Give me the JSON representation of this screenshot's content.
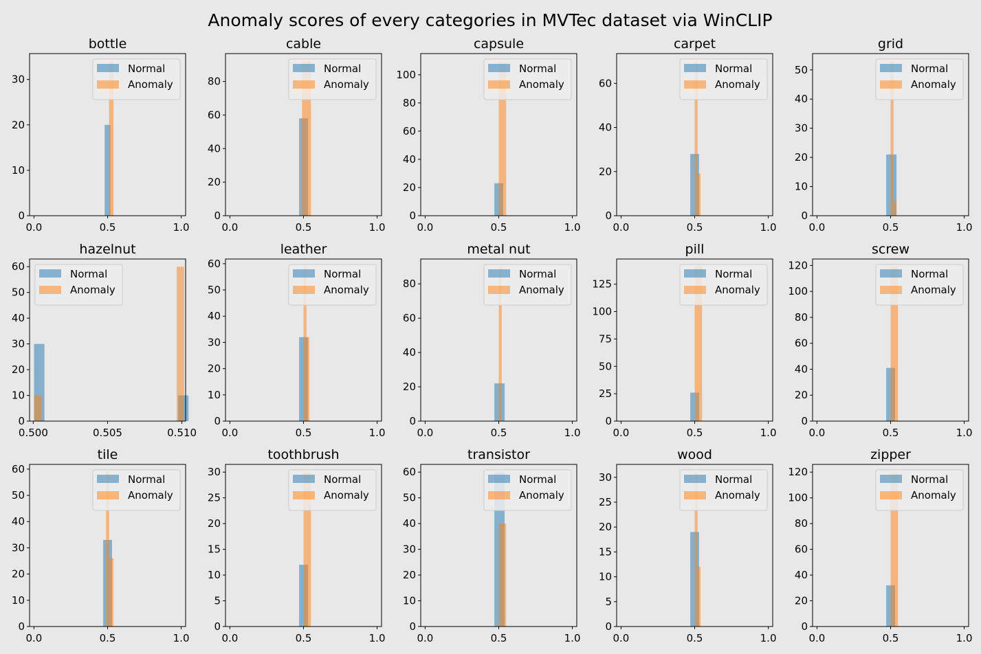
{
  "figure": {
    "suptitle": "Anomaly scores of every categories in MVTec dataset via WinCLIP",
    "background": "#e8e8e8"
  },
  "colors": {
    "normal": "#1f77b4",
    "anomaly": "#ff7f0e"
  },
  "legend": {
    "normal": "Normal",
    "anomaly": "Anomaly"
  },
  "chart_data": [
    {
      "type": "bar",
      "title": "bottle",
      "xlim": [
        -0.03,
        1.03
      ],
      "ylim": [
        0,
        35.7
      ],
      "xticks": [
        "0.0",
        "0.5",
        "1.0"
      ],
      "xtick_values": [
        0,
        0.5,
        1
      ],
      "yticks": [
        0,
        10,
        20,
        30
      ],
      "legend_loc": "upper right",
      "series": [
        {
          "name": "Normal",
          "bars": [
            {
              "x0": 0.48,
              "x1": 0.52,
              "value": 20
            }
          ]
        },
        {
          "name": "Anomaly",
          "bars": [
            {
              "x0": 0.51,
              "x1": 0.54,
              "value": 34
            }
          ]
        }
      ]
    },
    {
      "type": "bar",
      "title": "cable",
      "xlim": [
        -0.03,
        1.03
      ],
      "ylim": [
        0,
        96.6
      ],
      "xticks": [
        "0.0",
        "0.5",
        "1.0"
      ],
      "xtick_values": [
        0,
        0.5,
        1
      ],
      "yticks": [
        0,
        20,
        40,
        60,
        80
      ],
      "legend_loc": "upper right",
      "series": [
        {
          "name": "Normal",
          "bars": [
            {
              "x0": 0.47,
              "x1": 0.53,
              "value": 58
            }
          ]
        },
        {
          "name": "Anomaly",
          "bars": [
            {
              "x0": 0.49,
              "x1": 0.55,
              "value": 92
            }
          ]
        }
      ]
    },
    {
      "type": "bar",
      "title": "capsule",
      "xlim": [
        -0.03,
        1.03
      ],
      "ylim": [
        0,
        115
      ],
      "xticks": [
        "0.0",
        "0.5",
        "1.0"
      ],
      "xtick_values": [
        0,
        0.5,
        1
      ],
      "yticks": [
        0,
        20,
        40,
        60,
        80,
        100
      ],
      "legend_loc": "upper right",
      "series": [
        {
          "name": "Normal",
          "bars": [
            {
              "x0": 0.47,
              "x1": 0.53,
              "value": 23
            }
          ]
        },
        {
          "name": "Anomaly",
          "bars": [
            {
              "x0": 0.5,
              "x1": 0.55,
              "value": 109
            }
          ]
        }
      ]
    },
    {
      "type": "bar",
      "title": "carpet",
      "xlim": [
        -0.03,
        1.03
      ],
      "ylim": [
        0,
        73.5
      ],
      "xticks": [
        "0.0",
        "0.5",
        "1.0"
      ],
      "xtick_values": [
        0,
        0.5,
        1
      ],
      "yticks": [
        0,
        20,
        40,
        60
      ],
      "legend_loc": "upper right",
      "series": [
        {
          "name": "Normal",
          "bars": [
            {
              "x0": 0.47,
              "x1": 0.53,
              "value": 28
            }
          ]
        },
        {
          "name": "Anomaly",
          "bars": [
            {
              "x0": 0.5,
              "x1": 0.52,
              "value": 70
            },
            {
              "x0": 0.52,
              "x1": 0.54,
              "value": 19
            }
          ]
        }
      ]
    },
    {
      "type": "bar",
      "title": "grid",
      "xlim": [
        -0.03,
        1.03
      ],
      "ylim": [
        0,
        55.6
      ],
      "xticks": [
        "0.0",
        "0.5",
        "1.0"
      ],
      "xtick_values": [
        0,
        0.5,
        1
      ],
      "yticks": [
        0,
        10,
        20,
        30,
        40,
        50
      ],
      "legend_loc": "upper right",
      "series": [
        {
          "name": "Normal",
          "bars": [
            {
              "x0": 0.47,
              "x1": 0.54,
              "value": 21
            }
          ]
        },
        {
          "name": "Anomaly",
          "bars": [
            {
              "x0": 0.5,
              "x1": 0.52,
              "value": 53
            },
            {
              "x0": 0.52,
              "x1": 0.54,
              "value": 5
            }
          ]
        }
      ]
    },
    {
      "type": "bar",
      "title": "hazelnut",
      "xlim": [
        0.49975,
        0.51025
      ],
      "ylim": [
        0,
        63
      ],
      "xticks": [
        "0.500",
        "0.505",
        "0.510"
      ],
      "xtick_values": [
        0.5,
        0.505,
        0.51
      ],
      "yticks": [
        0,
        10,
        20,
        30,
        40,
        50,
        60
      ],
      "legend_loc": "upper left",
      "series": [
        {
          "name": "Normal",
          "bars": [
            {
              "x0": 0.50005,
              "x1": 0.50075,
              "value": 30
            },
            {
              "x0": 0.50975,
              "x1": 0.51045,
              "value": 10
            }
          ]
        },
        {
          "name": "Anomaly",
          "bars": [
            {
              "x0": 0.50005,
              "x1": 0.50055,
              "value": 10
            },
            {
              "x0": 0.50965,
              "x1": 0.51015,
              "value": 60
            }
          ]
        }
      ]
    },
    {
      "type": "bar",
      "title": "leather",
      "xlim": [
        -0.03,
        1.03
      ],
      "ylim": [
        0,
        61.8
      ],
      "xticks": [
        "0.0",
        "0.5",
        "1.0"
      ],
      "xtick_values": [
        0,
        0.5,
        1
      ],
      "yticks": [
        0,
        10,
        20,
        30,
        40,
        50,
        60
      ],
      "legend_loc": "upper right",
      "series": [
        {
          "name": "Normal",
          "bars": [
            {
              "x0": 0.47,
              "x1": 0.53,
              "value": 32
            }
          ]
        },
        {
          "name": "Anomaly",
          "bars": [
            {
              "x0": 0.5,
              "x1": 0.52,
              "value": 59
            },
            {
              "x0": 0.52,
              "x1": 0.54,
              "value": 32
            }
          ]
        }
      ]
    },
    {
      "type": "bar",
      "title": "metal nut",
      "xlim": [
        -0.03,
        1.03
      ],
      "ylim": [
        0,
        94.5
      ],
      "xticks": [
        "0.0",
        "0.5",
        "1.0"
      ],
      "xtick_values": [
        0,
        0.5,
        1
      ],
      "yticks": [
        0,
        20,
        40,
        60,
        80
      ],
      "legend_loc": "upper right",
      "series": [
        {
          "name": "Normal",
          "bars": [
            {
              "x0": 0.47,
              "x1": 0.54,
              "value": 22
            }
          ]
        },
        {
          "name": "Anomaly",
          "bars": [
            {
              "x0": 0.5,
              "x1": 0.52,
              "value": 90
            }
          ]
        }
      ]
    },
    {
      "type": "bar",
      "title": "pill",
      "xlim": [
        -0.03,
        1.03
      ],
      "ylim": [
        0,
        148
      ],
      "xticks": [
        "0.0",
        "0.5",
        "1.0"
      ],
      "xtick_values": [
        0,
        0.5,
        1
      ],
      "yticks": [
        0,
        25,
        50,
        75,
        100,
        125
      ],
      "legend_loc": "upper right",
      "series": [
        {
          "name": "Normal",
          "bars": [
            {
              "x0": 0.47,
              "x1": 0.53,
              "value": 26
            }
          ]
        },
        {
          "name": "Anomaly",
          "bars": [
            {
              "x0": 0.5,
              "x1": 0.55,
              "value": 141
            }
          ]
        }
      ]
    },
    {
      "type": "bar",
      "title": "screw",
      "xlim": [
        -0.03,
        1.03
      ],
      "ylim": [
        0,
        125
      ],
      "xticks": [
        "0.0",
        "0.5",
        "1.0"
      ],
      "xtick_values": [
        0,
        0.5,
        1
      ],
      "yticks": [
        0,
        20,
        40,
        60,
        80,
        100,
        120
      ],
      "legend_loc": "upper right",
      "series": [
        {
          "name": "Normal",
          "bars": [
            {
              "x0": 0.47,
              "x1": 0.53,
              "value": 41
            }
          ]
        },
        {
          "name": "Anomaly",
          "bars": [
            {
              "x0": 0.5,
              "x1": 0.55,
              "value": 119
            }
          ]
        }
      ]
    },
    {
      "type": "bar",
      "title": "tile",
      "xlim": [
        -0.03,
        1.03
      ],
      "ylim": [
        0,
        61.8
      ],
      "xticks": [
        "0.0",
        "0.5",
        "1.0"
      ],
      "xtick_values": [
        0,
        0.5,
        1
      ],
      "yticks": [
        0,
        10,
        20,
        30,
        40,
        50,
        60
      ],
      "legend_loc": "upper right",
      "series": [
        {
          "name": "Normal",
          "bars": [
            {
              "x0": 0.47,
              "x1": 0.53,
              "value": 33
            }
          ]
        },
        {
          "name": "Anomaly",
          "bars": [
            {
              "x0": 0.49,
              "x1": 0.51,
              "value": 59
            },
            {
              "x0": 0.51,
              "x1": 0.54,
              "value": 26
            }
          ]
        }
      ]
    },
    {
      "type": "bar",
      "title": "toothbrush",
      "xlim": [
        -0.03,
        1.03
      ],
      "ylim": [
        0,
        31.5
      ],
      "xticks": [
        "0.0",
        "0.5",
        "1.0"
      ],
      "xtick_values": [
        0,
        0.5,
        1
      ],
      "yticks": [
        0,
        5,
        10,
        15,
        20,
        25,
        30
      ],
      "legend_loc": "upper right",
      "series": [
        {
          "name": "Normal",
          "bars": [
            {
              "x0": 0.47,
              "x1": 0.53,
              "value": 12
            }
          ]
        },
        {
          "name": "Anomaly",
          "bars": [
            {
              "x0": 0.5,
              "x1": 0.55,
              "value": 30
            }
          ]
        }
      ]
    },
    {
      "type": "bar",
      "title": "transistor",
      "xlim": [
        -0.03,
        1.03
      ],
      "ylim": [
        0,
        63
      ],
      "xticks": [
        "0.0",
        "0.5",
        "1.0"
      ],
      "xtick_values": [
        0,
        0.5,
        1
      ],
      "yticks": [
        0,
        10,
        20,
        30,
        40,
        50,
        60
      ],
      "legend_loc": "upper right",
      "series": [
        {
          "name": "Normal",
          "bars": [
            {
              "x0": 0.47,
              "x1": 0.54,
              "value": 60
            }
          ]
        },
        {
          "name": "Anomaly",
          "bars": [
            {
              "x0": 0.5,
              "x1": 0.55,
              "value": 40
            }
          ]
        }
      ]
    },
    {
      "type": "bar",
      "title": "wood",
      "xlim": [
        -0.03,
        1.03
      ],
      "ylim": [
        0,
        32.6
      ],
      "xticks": [
        "0.0",
        "0.5",
        "1.0"
      ],
      "xtick_values": [
        0,
        0.5,
        1
      ],
      "yticks": [
        0,
        5,
        10,
        15,
        20,
        25,
        30
      ],
      "legend_loc": "upper right",
      "series": [
        {
          "name": "Normal",
          "bars": [
            {
              "x0": 0.47,
              "x1": 0.53,
              "value": 19
            }
          ]
        },
        {
          "name": "Anomaly",
          "bars": [
            {
              "x0": 0.5,
              "x1": 0.52,
              "value": 31
            },
            {
              "x0": 0.52,
              "x1": 0.54,
              "value": 12
            }
          ]
        }
      ]
    },
    {
      "type": "bar",
      "title": "zipper",
      "xlim": [
        -0.03,
        1.03
      ],
      "ylim": [
        0,
        126
      ],
      "xticks": [
        "0.0",
        "0.5",
        "1.0"
      ],
      "xtick_values": [
        0,
        0.5,
        1
      ],
      "yticks": [
        0,
        20,
        40,
        60,
        80,
        100,
        120
      ],
      "legend_loc": "upper right",
      "series": [
        {
          "name": "Normal",
          "bars": [
            {
              "x0": 0.47,
              "x1": 0.53,
              "value": 32
            }
          ]
        },
        {
          "name": "Anomaly",
          "bars": [
            {
              "x0": 0.5,
              "x1": 0.55,
              "value": 120
            }
          ]
        }
      ]
    }
  ]
}
